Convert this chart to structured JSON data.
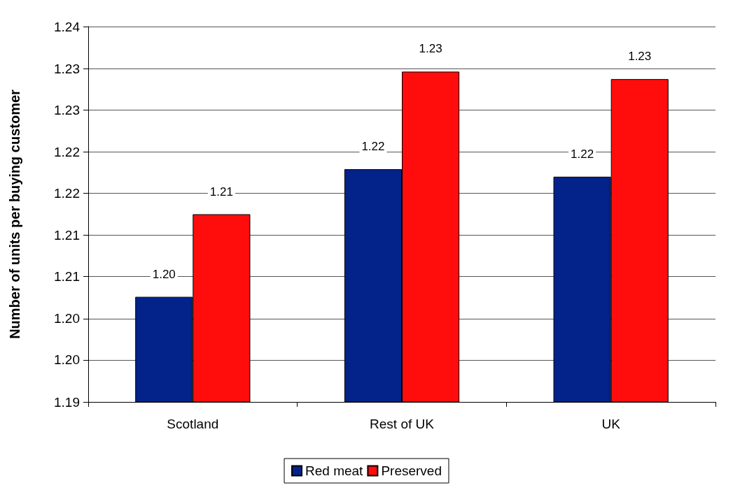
{
  "chart_data": {
    "type": "bar",
    "ylabel": "Number of units per buying customer",
    "categories": [
      "Scotland",
      "Rest of UK",
      "UK"
    ],
    "series": [
      {
        "name": "Red meat",
        "color": "#03228a",
        "values": [
          1.204,
          1.221,
          1.22
        ],
        "value_labels": [
          "1.20",
          "1.22",
          "1.22"
        ]
      },
      {
        "name": "Preserved",
        "color": "#ff0d0d",
        "values": [
          1.215,
          1.234,
          1.233
        ],
        "value_labels": [
          "1.21",
          "1.23",
          "1.23"
        ]
      }
    ],
    "ylim": [
      1.19,
      1.24
    ],
    "yticks": [
      1.19,
      {
        "value": 1.1956,
        "label": "1.20"
      },
      {
        "value": 1.2011,
        "label": "1.20"
      },
      {
        "value": 1.2067,
        "label": "1.21"
      },
      {
        "value": 1.2122,
        "label": "1.21"
      },
      {
        "value": 1.2178,
        "label": "1.22"
      },
      {
        "value": 1.2233,
        "label": "1.22"
      },
      {
        "value": 1.2289,
        "label": "1.23"
      },
      {
        "value": 1.2344,
        "label": "1.23"
      },
      1.24
    ],
    "grid": "y",
    "legend": "bottom"
  }
}
